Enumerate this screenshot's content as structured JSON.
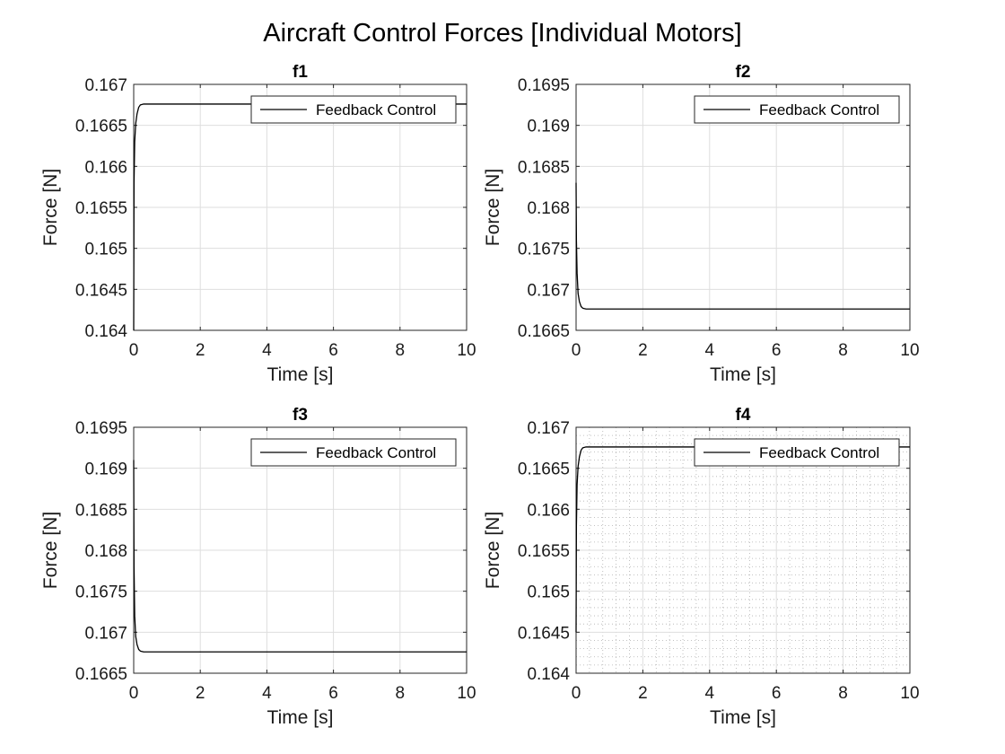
{
  "figure": {
    "title": "Aircraft Control Forces [Individual Motors]"
  },
  "chart_data": [
    {
      "type": "line",
      "title": "f1",
      "xlabel": "Time [s]",
      "ylabel": "Force [N]",
      "xlim": [
        0,
        10
      ],
      "ylim": [
        0.164,
        0.167
      ],
      "xticks": [
        0,
        2,
        4,
        6,
        8,
        10
      ],
      "yticks": [
        0.164,
        0.1645,
        0.165,
        0.1655,
        0.166,
        0.1665,
        0.167
      ],
      "xtick_labels": [
        "0",
        "2",
        "4",
        "6",
        "8",
        "10"
      ],
      "ytick_labels": [
        "0.164",
        "0.1645",
        "0.165",
        "0.1655",
        "0.166",
        "0.1665",
        "0.167"
      ],
      "grid": true,
      "minor_grid": false,
      "legend": "top-right",
      "color": "#000000",
      "series": [
        {
          "name": "Feedback Control",
          "x": [
            0,
            0.01,
            0.03,
            0.06,
            0.1,
            0.15,
            0.2,
            0.3,
            0.5,
            1,
            2,
            4,
            6,
            8,
            10
          ],
          "y": [
            0.164,
            0.1658,
            0.1663,
            0.16652,
            0.16664,
            0.16672,
            0.16675,
            0.16676,
            0.16676,
            0.16676,
            0.16676,
            0.16676,
            0.16676,
            0.16676,
            0.16676
          ]
        }
      ]
    },
    {
      "type": "line",
      "title": "f2",
      "xlabel": "Time [s]",
      "ylabel": "Force [N]",
      "xlim": [
        0,
        10
      ],
      "ylim": [
        0.1665,
        0.1695
      ],
      "xticks": [
        0,
        2,
        4,
        6,
        8,
        10
      ],
      "yticks": [
        0.1665,
        0.167,
        0.1675,
        0.168,
        0.1685,
        0.169,
        0.1695
      ],
      "xtick_labels": [
        "0",
        "2",
        "4",
        "6",
        "8",
        "10"
      ],
      "ytick_labels": [
        "0.1665",
        "0.167",
        "0.1675",
        "0.168",
        "0.1685",
        "0.169",
        "0.1695"
      ],
      "grid": true,
      "minor_grid": false,
      "legend": "top-right",
      "color": "#000000",
      "series": [
        {
          "name": "Feedback Control",
          "x": [
            0,
            0.01,
            0.03,
            0.06,
            0.1,
            0.15,
            0.2,
            0.3,
            0.5,
            1,
            2,
            4,
            6,
            8,
            10
          ],
          "y": [
            0.1683,
            0.1676,
            0.1672,
            0.16695,
            0.16685,
            0.16679,
            0.16677,
            0.16676,
            0.16676,
            0.16676,
            0.16676,
            0.16676,
            0.16676,
            0.16676,
            0.16676
          ]
        }
      ]
    },
    {
      "type": "line",
      "title": "f3",
      "xlabel": "Time [s]",
      "ylabel": "Force [N]",
      "xlim": [
        0,
        10
      ],
      "ylim": [
        0.1665,
        0.1695
      ],
      "xticks": [
        0,
        2,
        4,
        6,
        8,
        10
      ],
      "yticks": [
        0.1665,
        0.167,
        0.1675,
        0.168,
        0.1685,
        0.169,
        0.1695
      ],
      "xtick_labels": [
        "0",
        "2",
        "4",
        "6",
        "8",
        "10"
      ],
      "ytick_labels": [
        "0.1665",
        "0.167",
        "0.1675",
        "0.168",
        "0.1685",
        "0.169",
        "0.1695"
      ],
      "grid": true,
      "minor_grid": false,
      "legend": "top-right",
      "color": "#000000",
      "series": [
        {
          "name": "Feedback Control",
          "x": [
            0,
            0.01,
            0.03,
            0.06,
            0.1,
            0.15,
            0.2,
            0.3,
            0.5,
            1,
            2,
            4,
            6,
            8,
            10
          ],
          "y": [
            0.1691,
            0.1678,
            0.1672,
            0.16695,
            0.16685,
            0.16679,
            0.16677,
            0.16676,
            0.16676,
            0.16676,
            0.16676,
            0.16676,
            0.16676,
            0.16676,
            0.16676
          ]
        }
      ]
    },
    {
      "type": "line",
      "title": "f4",
      "xlabel": "Time [s]",
      "ylabel": "Force [N]",
      "xlim": [
        0,
        10
      ],
      "ylim": [
        0.164,
        0.167
      ],
      "xticks": [
        0,
        2,
        4,
        6,
        8,
        10
      ],
      "yticks": [
        0.164,
        0.1645,
        0.165,
        0.1655,
        0.166,
        0.1665,
        0.167
      ],
      "xtick_labels": [
        "0",
        "2",
        "4",
        "6",
        "8",
        "10"
      ],
      "ytick_labels": [
        "0.164",
        "0.1645",
        "0.165",
        "0.1655",
        "0.166",
        "0.1665",
        "0.167"
      ],
      "grid": true,
      "minor_grid": true,
      "legend": "top-right",
      "color": "#000000",
      "series": [
        {
          "name": "Feedback Control",
          "x": [
            0,
            0.01,
            0.03,
            0.06,
            0.1,
            0.15,
            0.2,
            0.3,
            0.5,
            1,
            2,
            4,
            6,
            8,
            10
          ],
          "y": [
            0.1645,
            0.1658,
            0.1663,
            0.16652,
            0.16664,
            0.16672,
            0.16675,
            0.16676,
            0.16676,
            0.16676,
            0.16676,
            0.16676,
            0.16676,
            0.16676,
            0.16676
          ]
        }
      ]
    }
  ]
}
